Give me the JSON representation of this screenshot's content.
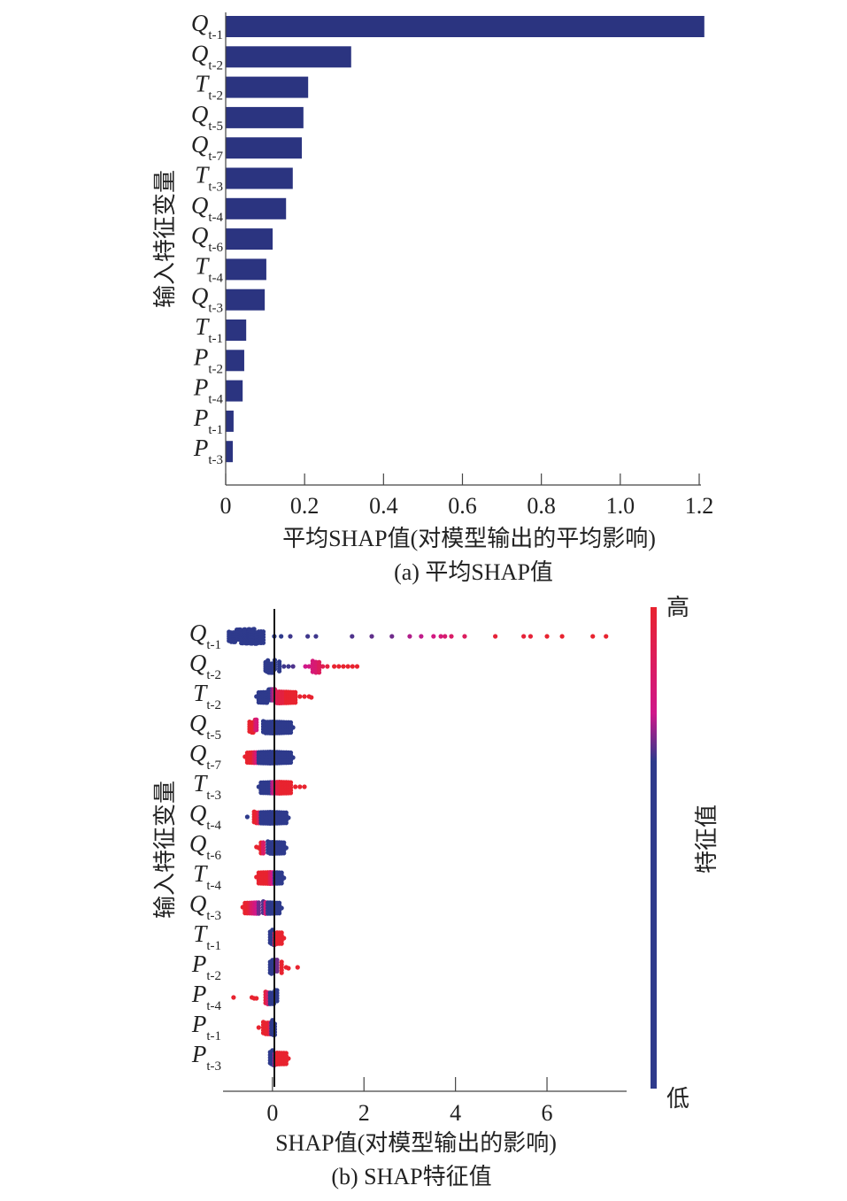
{
  "chart_data": [
    {
      "type": "bar",
      "orientation": "horizontal",
      "caption": "(a) 平均SHAP值",
      "xlabel": "平均SHAP值(对模型输出的平均影响)",
      "ylabel": "输入特征变量",
      "xlim": [
        0,
        1.2
      ],
      "xticks": [
        "0",
        "0.2",
        "0.4",
        "0.6",
        "0.8",
        "1.0",
        "1.2"
      ],
      "bar_color": "#2b3480",
      "categories": [
        {
          "sym": "Q",
          "sub": "t-1"
        },
        {
          "sym": "Q",
          "sub": "t-2"
        },
        {
          "sym": "T",
          "sub": "t-2"
        },
        {
          "sym": "Q",
          "sub": "t-5"
        },
        {
          "sym": "Q",
          "sub": "t-7"
        },
        {
          "sym": "T",
          "sub": "t-3"
        },
        {
          "sym": "Q",
          "sub": "t-4"
        },
        {
          "sym": "Q",
          "sub": "t-6"
        },
        {
          "sym": "T",
          "sub": "t-4"
        },
        {
          "sym": "Q",
          "sub": "t-3"
        },
        {
          "sym": "T",
          "sub": "t-1"
        },
        {
          "sym": "P",
          "sub": "t-2"
        },
        {
          "sym": "P",
          "sub": "t-4"
        },
        {
          "sym": "P",
          "sub": "t-1"
        },
        {
          "sym": "P",
          "sub": "t-3"
        }
      ],
      "values": [
        1.213,
        0.318,
        0.209,
        0.197,
        0.193,
        0.17,
        0.153,
        0.119,
        0.103,
        0.099,
        0.052,
        0.047,
        0.043,
        0.02,
        0.018
      ]
    },
    {
      "type": "scatter",
      "subtype": "beeswarm",
      "caption": "(b) SHAP特征值",
      "xlabel": "SHAP值(对模型输出的影响)",
      "ylabel": "输入特征变量",
      "xlim": [
        -1.08,
        7.74
      ],
      "xticks": [
        "0",
        "2",
        "4",
        "6"
      ],
      "colorbar": {
        "label": "特征值",
        "high": "高",
        "low": "低",
        "colors": [
          "#e8232f",
          "#d0178a",
          "#2e3a8c"
        ]
      },
      "categories": [
        {
          "sym": "Q",
          "sub": "t-1"
        },
        {
          "sym": "Q",
          "sub": "t-2"
        },
        {
          "sym": "T",
          "sub": "t-2"
        },
        {
          "sym": "Q",
          "sub": "t-5"
        },
        {
          "sym": "Q",
          "sub": "t-7"
        },
        {
          "sym": "T",
          "sub": "t-3"
        },
        {
          "sym": "Q",
          "sub": "t-4"
        },
        {
          "sym": "Q",
          "sub": "t-6"
        },
        {
          "sym": "T",
          "sub": "t-4"
        },
        {
          "sym": "Q",
          "sub": "t-3"
        },
        {
          "sym": "T",
          "sub": "t-1"
        },
        {
          "sym": "P",
          "sub": "t-2"
        },
        {
          "sym": "P",
          "sub": "t-4"
        },
        {
          "sym": "P",
          "sub": "t-1"
        },
        {
          "sym": "P",
          "sub": "t-3"
        }
      ],
      "points": [
        [
          [
            -0.95,
            0
          ],
          [
            -0.9,
            0
          ],
          [
            -0.85,
            0
          ],
          [
            -0.82,
            0
          ],
          [
            -0.78,
            0
          ],
          [
            -0.75,
            0
          ],
          [
            -0.72,
            0
          ],
          [
            -0.7,
            0
          ],
          [
            -0.68,
            0
          ],
          [
            -0.65,
            0
          ],
          [
            -0.62,
            0
          ],
          [
            -0.6,
            0
          ],
          [
            -0.58,
            0
          ],
          [
            -0.55,
            0
          ],
          [
            -0.52,
            0
          ],
          [
            -0.5,
            0
          ],
          [
            -0.48,
            0
          ],
          [
            -0.45,
            0
          ],
          [
            -0.42,
            0
          ],
          [
            -0.4,
            0
          ],
          [
            -0.38,
            0
          ],
          [
            -0.35,
            0
          ],
          [
            -0.3,
            0
          ],
          [
            -0.25,
            0
          ],
          [
            -0.2,
            0
          ],
          [
            0.04,
            0
          ],
          [
            0.19,
            0
          ],
          [
            0.39,
            0.05
          ],
          [
            0.77,
            0.05
          ],
          [
            0.95,
            0.05
          ],
          [
            1.74,
            0.1
          ],
          [
            2.17,
            0.15
          ],
          [
            2.61,
            0.2
          ],
          [
            3.0,
            0.4
          ],
          [
            3.25,
            0.45
          ],
          [
            3.52,
            0.55
          ],
          [
            3.68,
            0.6
          ],
          [
            3.77,
            0.65
          ],
          [
            3.91,
            0.7
          ],
          [
            4.2,
            0.75
          ],
          [
            4.87,
            0.95
          ],
          [
            5.49,
            0.95
          ],
          [
            5.64,
            0.95
          ],
          [
            6.0,
            1
          ],
          [
            6.33,
            1
          ],
          [
            7.0,
            1
          ],
          [
            7.29,
            1
          ]
        ],
        [
          [
            -0.15,
            0
          ],
          [
            -0.12,
            0
          ],
          [
            -0.1,
            0
          ],
          [
            -0.08,
            0
          ],
          [
            -0.06,
            0
          ],
          [
            -0.04,
            0
          ],
          [
            -0.02,
            0
          ],
          [
            0.0,
            0
          ],
          [
            0.05,
            0
          ],
          [
            0.15,
            0
          ],
          [
            0.25,
            0.05
          ],
          [
            0.35,
            0.05
          ],
          [
            0.45,
            0.1
          ],
          [
            0.72,
            0.5
          ],
          [
            0.8,
            0.55
          ],
          [
            0.88,
            0.6
          ],
          [
            0.95,
            0.65
          ],
          [
            1.02,
            0.75
          ],
          [
            1.1,
            0.8
          ],
          [
            1.2,
            0.9
          ],
          [
            1.35,
            1
          ],
          [
            1.45,
            1
          ],
          [
            1.55,
            1
          ],
          [
            1.65,
            1
          ],
          [
            1.75,
            1
          ],
          [
            1.85,
            1
          ]
        ],
        [
          [
            -0.35,
            0
          ],
          [
            -0.3,
            0
          ],
          [
            -0.25,
            0
          ],
          [
            -0.2,
            0
          ],
          [
            -0.15,
            0
          ],
          [
            -0.12,
            0
          ],
          [
            -0.08,
            0
          ],
          [
            -0.05,
            0
          ],
          [
            -0.02,
            0
          ],
          [
            0.0,
            0.3
          ],
          [
            0.05,
            0.7
          ],
          [
            0.1,
            0.8
          ],
          [
            0.15,
            0.85
          ],
          [
            0.2,
            0.9
          ],
          [
            0.25,
            0.9
          ],
          [
            0.3,
            1
          ],
          [
            0.35,
            1
          ],
          [
            0.4,
            1
          ],
          [
            0.45,
            1
          ],
          [
            0.5,
            1
          ],
          [
            0.6,
            1
          ],
          [
            0.7,
            1
          ],
          [
            0.8,
            1
          ],
          [
            0.85,
            1
          ]
        ],
        [
          [
            -0.5,
            1
          ],
          [
            -0.45,
            1
          ],
          [
            -0.42,
            1
          ],
          [
            -0.38,
            0.8
          ],
          [
            -0.35,
            0.6
          ],
          [
            -0.2,
            0
          ],
          [
            -0.15,
            0
          ],
          [
            -0.1,
            0
          ],
          [
            -0.05,
            0
          ],
          [
            0.0,
            0
          ],
          [
            0.05,
            0
          ],
          [
            0.1,
            0
          ],
          [
            0.15,
            0
          ],
          [
            0.2,
            0
          ],
          [
            0.25,
            0
          ],
          [
            0.3,
            0
          ],
          [
            0.35,
            0
          ],
          [
            0.4,
            0
          ],
          [
            0.45,
            0
          ]
        ],
        [
          [
            -0.6,
            1
          ],
          [
            -0.55,
            1
          ],
          [
            -0.5,
            1
          ],
          [
            -0.45,
            1
          ],
          [
            -0.4,
            0.8
          ],
          [
            -0.35,
            0.6
          ],
          [
            -0.3,
            0
          ],
          [
            -0.25,
            0
          ],
          [
            -0.2,
            0
          ],
          [
            -0.15,
            0
          ],
          [
            -0.1,
            0
          ],
          [
            -0.05,
            0
          ],
          [
            0.0,
            0
          ],
          [
            0.05,
            0
          ],
          [
            0.1,
            0
          ],
          [
            0.15,
            0
          ],
          [
            0.2,
            0
          ],
          [
            0.25,
            0
          ],
          [
            0.3,
            0
          ],
          [
            0.35,
            0
          ],
          [
            0.4,
            0
          ],
          [
            0.45,
            0
          ]
        ],
        [
          [
            -0.3,
            0
          ],
          [
            -0.25,
            0
          ],
          [
            -0.2,
            0
          ],
          [
            -0.15,
            0
          ],
          [
            -0.1,
            0
          ],
          [
            -0.05,
            0
          ],
          [
            0.0,
            0.4
          ],
          [
            0.05,
            0.7
          ],
          [
            0.1,
            0.85
          ],
          [
            0.15,
            0.9
          ],
          [
            0.2,
            1
          ],
          [
            0.25,
            1
          ],
          [
            0.3,
            1
          ],
          [
            0.35,
            1
          ],
          [
            0.4,
            1
          ],
          [
            0.5,
            1
          ],
          [
            0.6,
            1
          ],
          [
            0.7,
            1
          ]
        ],
        [
          [
            -0.55,
            0
          ],
          [
            -0.4,
            1
          ],
          [
            -0.35,
            1
          ],
          [
            -0.3,
            0.8
          ],
          [
            -0.25,
            0
          ],
          [
            -0.2,
            0
          ],
          [
            -0.15,
            0
          ],
          [
            -0.1,
            0
          ],
          [
            -0.05,
            0
          ],
          [
            0.0,
            0
          ],
          [
            0.05,
            0
          ],
          [
            0.1,
            0
          ],
          [
            0.15,
            0
          ],
          [
            0.2,
            0
          ],
          [
            0.25,
            0
          ],
          [
            0.3,
            0
          ],
          [
            0.35,
            0
          ]
        ],
        [
          [
            -0.35,
            1
          ],
          [
            -0.3,
            1
          ],
          [
            -0.25,
            1
          ],
          [
            -0.2,
            0.7
          ],
          [
            -0.1,
            0
          ],
          [
            -0.05,
            0
          ],
          [
            0.0,
            0
          ],
          [
            0.05,
            0
          ],
          [
            0.1,
            0
          ],
          [
            0.15,
            0
          ],
          [
            0.2,
            0
          ],
          [
            0.25,
            0
          ],
          [
            0.3,
            0
          ]
        ],
        [
          [
            -0.35,
            1
          ],
          [
            -0.3,
            1
          ],
          [
            -0.25,
            1
          ],
          [
            -0.2,
            1
          ],
          [
            -0.15,
            1
          ],
          [
            -0.1,
            1
          ],
          [
            -0.05,
            0.8
          ],
          [
            0.0,
            0.5
          ],
          [
            0.05,
            0
          ],
          [
            0.1,
            0
          ],
          [
            0.15,
            0
          ],
          [
            0.2,
            0
          ],
          [
            0.25,
            0
          ]
        ],
        [
          [
            -0.65,
            1
          ],
          [
            -0.6,
            1
          ],
          [
            -0.55,
            1
          ],
          [
            -0.5,
            0.9
          ],
          [
            -0.45,
            0.7
          ],
          [
            -0.4,
            0.6
          ],
          [
            -0.35,
            0.5
          ],
          [
            -0.3,
            0.2
          ],
          [
            -0.2,
            0.1
          ],
          [
            -0.15,
            0.6
          ],
          [
            -0.1,
            0
          ],
          [
            -0.05,
            0
          ],
          [
            0.0,
            0
          ],
          [
            0.05,
            0
          ],
          [
            0.1,
            0
          ],
          [
            0.15,
            0
          ],
          [
            0.2,
            0
          ]
        ],
        [
          [
            -0.05,
            0
          ],
          [
            -0.02,
            0
          ],
          [
            0.0,
            0
          ],
          [
            0.02,
            0
          ],
          [
            0.05,
            0.8
          ],
          [
            0.1,
            1
          ],
          [
            0.15,
            1
          ],
          [
            0.2,
            1
          ],
          [
            0.25,
            1
          ]
        ],
        [
          [
            -0.05,
            0
          ],
          [
            -0.02,
            0
          ],
          [
            0.0,
            0
          ],
          [
            0.03,
            0
          ],
          [
            0.06,
            0
          ],
          [
            0.1,
            0.2
          ],
          [
            0.2,
            1
          ],
          [
            0.3,
            1
          ],
          [
            0.35,
            1
          ],
          [
            0.55,
            1
          ]
        ],
        [
          [
            -0.85,
            1
          ],
          [
            -0.45,
            1
          ],
          [
            -0.4,
            1
          ],
          [
            -0.35,
            1
          ],
          [
            -0.15,
            0.9
          ],
          [
            -0.1,
            0.7
          ],
          [
            -0.05,
            0
          ],
          [
            0.0,
            0
          ],
          [
            0.03,
            0
          ],
          [
            0.06,
            0
          ],
          [
            0.1,
            0
          ]
        ],
        [
          [
            -0.3,
            1
          ],
          [
            -0.2,
            1
          ],
          [
            -0.15,
            1
          ],
          [
            -0.1,
            1
          ],
          [
            -0.05,
            0.8
          ],
          [
            -0.02,
            0
          ],
          [
            0.0,
            0
          ],
          [
            0.02,
            0
          ],
          [
            0.05,
            0
          ]
        ],
        [
          [
            -0.05,
            0
          ],
          [
            -0.02,
            0
          ],
          [
            0.0,
            0
          ],
          [
            0.02,
            0
          ],
          [
            0.05,
            0.4
          ],
          [
            0.1,
            1
          ],
          [
            0.15,
            1
          ],
          [
            0.2,
            1
          ],
          [
            0.25,
            1
          ],
          [
            0.3,
            1
          ],
          [
            0.35,
            1
          ]
        ]
      ]
    }
  ]
}
